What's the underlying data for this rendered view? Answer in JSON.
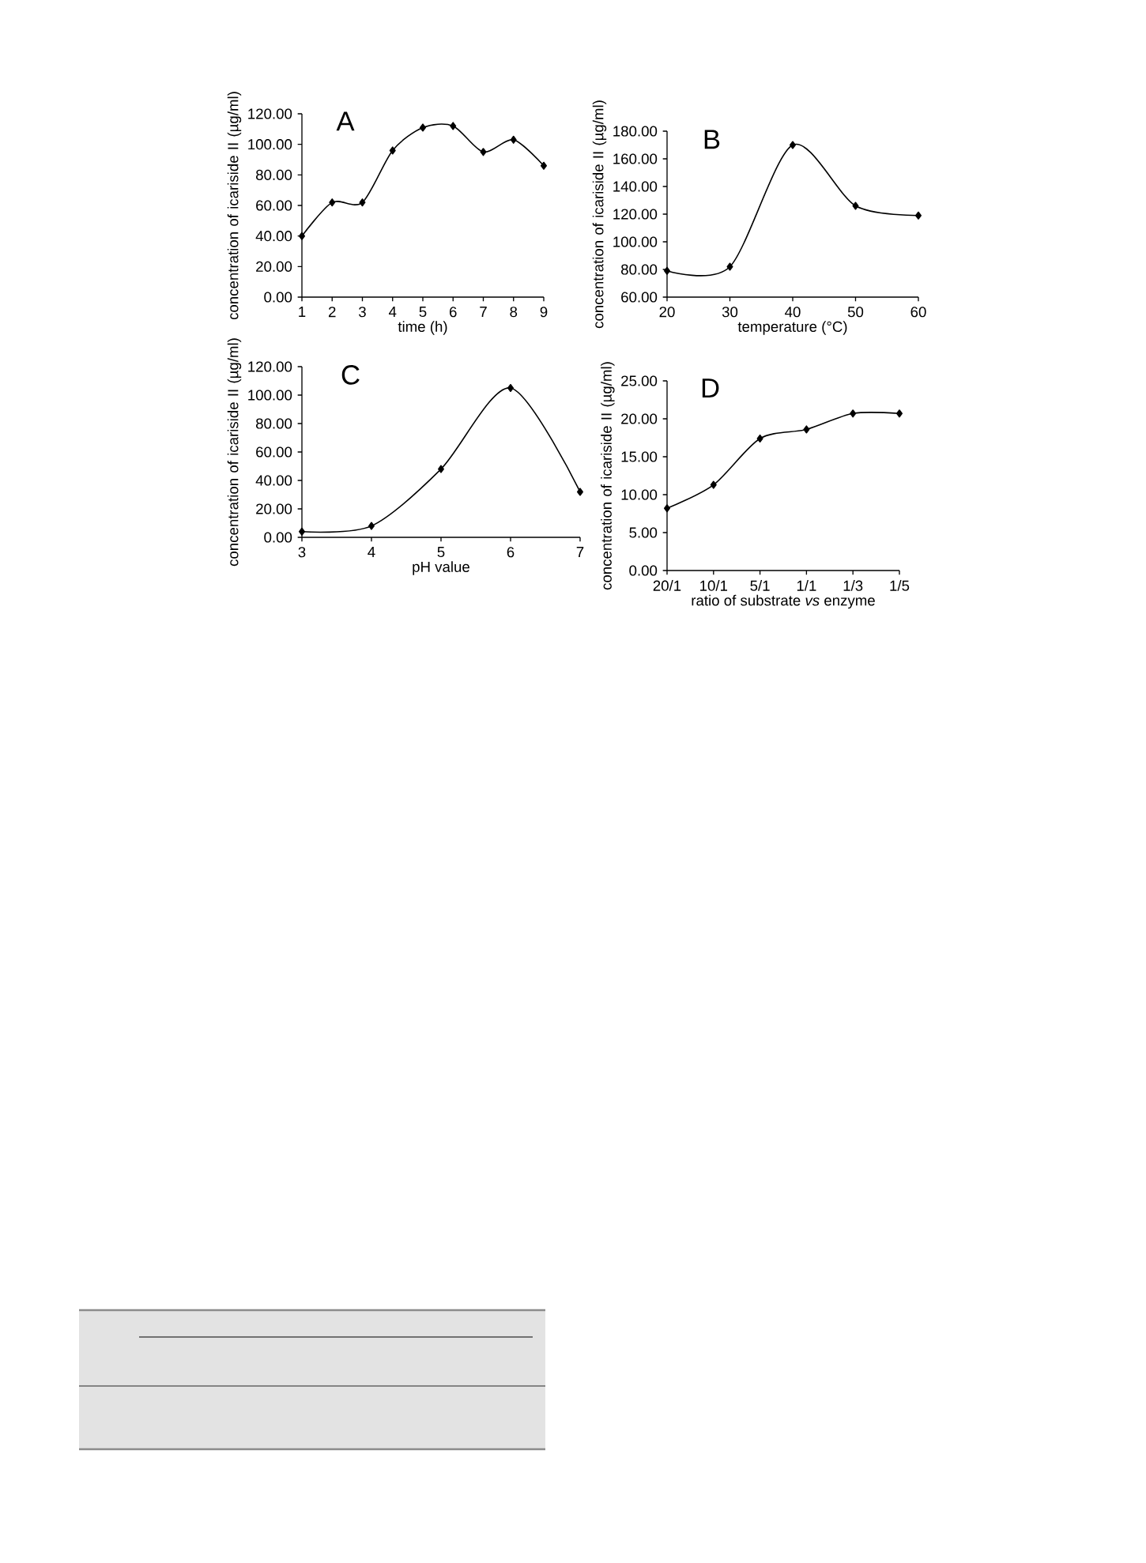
{
  "chart_data": [
    {
      "type": "line",
      "annotations": [
        "A"
      ],
      "xlabel": "time (h)",
      "ylabel": "concentration of icariside II (µg/ml)",
      "x": [
        1,
        2,
        3,
        4,
        5,
        6,
        7,
        8,
        9
      ],
      "series": [
        {
          "color": "#000000",
          "values": [
            40,
            62,
            62,
            96,
            111,
            112,
            95,
            103,
            86
          ]
        }
      ],
      "xlim": [
        1,
        9
      ],
      "xticks": [
        1,
        2,
        3,
        4,
        5,
        6,
        7,
        8,
        9
      ],
      "ylim": [
        0,
        120
      ],
      "yticks": [
        {
          "value": 0,
          "label": "0.00"
        },
        {
          "value": 20,
          "label": "20.00"
        },
        {
          "value": 40,
          "label": "40.00"
        },
        {
          "value": 60,
          "label": "60.00"
        },
        {
          "value": 80,
          "label": "80.00"
        },
        {
          "value": 100,
          "label": "100.00"
        },
        {
          "value": 120,
          "label": "120.00"
        }
      ],
      "marker": "diamond",
      "grid": false
    },
    {
      "type": "line",
      "annotations": [
        "B"
      ],
      "xlabel": "temperature (°C)",
      "ylabel": "concentration of icariside II (µg/ml)",
      "x": [
        20,
        30,
        40,
        50,
        60
      ],
      "series": [
        {
          "color": "#000000",
          "values": [
            79,
            82,
            170,
            126,
            119
          ]
        }
      ],
      "xlim": [
        20,
        60
      ],
      "xticks": [
        20,
        30,
        40,
        50,
        60
      ],
      "ylim": [
        60,
        180
      ],
      "yticks": [
        {
          "value": 60,
          "label": "60.00"
        },
        {
          "value": 80,
          "label": "80.00"
        },
        {
          "value": 100,
          "label": "100.00"
        },
        {
          "value": 120,
          "label": "120.00"
        },
        {
          "value": 140,
          "label": "140.00"
        },
        {
          "value": 160,
          "label": "160.00"
        },
        {
          "value": 180,
          "label": "180.00"
        }
      ],
      "marker": "diamond",
      "grid": false
    },
    {
      "type": "line",
      "annotations": [
        "C"
      ],
      "xlabel": "pH value",
      "ylabel": "concentration of icariside II (µg/ml)",
      "x": [
        3,
        4,
        5,
        6,
        7
      ],
      "series": [
        {
          "color": "#000000",
          "values": [
            4,
            8,
            48,
            105,
            32
          ]
        }
      ],
      "xlim": [
        3,
        7
      ],
      "xticks": [
        3,
        4,
        5,
        6,
        7
      ],
      "ylim": [
        0,
        120
      ],
      "yticks": [
        {
          "value": 0,
          "label": "0.00"
        },
        {
          "value": 20,
          "label": "20.00"
        },
        {
          "value": 40,
          "label": "40.00"
        },
        {
          "value": 60,
          "label": "60.00"
        },
        {
          "value": 80,
          "label": "80.00"
        },
        {
          "value": 100,
          "label": "100.00"
        },
        {
          "value": 120,
          "label": "120.00"
        }
      ],
      "marker": "diamond",
      "grid": false
    },
    {
      "type": "line",
      "annotations": [
        "D"
      ],
      "xlabel": "ratio of substrate *vs* enzyme",
      "ylabel": "concentration of icariside II (µg/ml)",
      "categories": [
        "20/1",
        "10/1",
        "5/1",
        "1/1",
        "1/3",
        "1/5"
      ],
      "series": [
        {
          "color": "#000000",
          "values": [
            8.2,
            11.3,
            17.4,
            18.6,
            20.7,
            20.7
          ]
        }
      ],
      "ylim": [
        0,
        25
      ],
      "yticks": [
        {
          "value": 0,
          "label": "0.00"
        },
        {
          "value": 5,
          "label": "5.00"
        },
        {
          "value": 10,
          "label": "10.00"
        },
        {
          "value": 15,
          "label": "15.00"
        },
        {
          "value": 20,
          "label": "20.00"
        },
        {
          "value": 25,
          "label": "25.00"
        }
      ],
      "marker": "diamond",
      "grid": false
    }
  ]
}
